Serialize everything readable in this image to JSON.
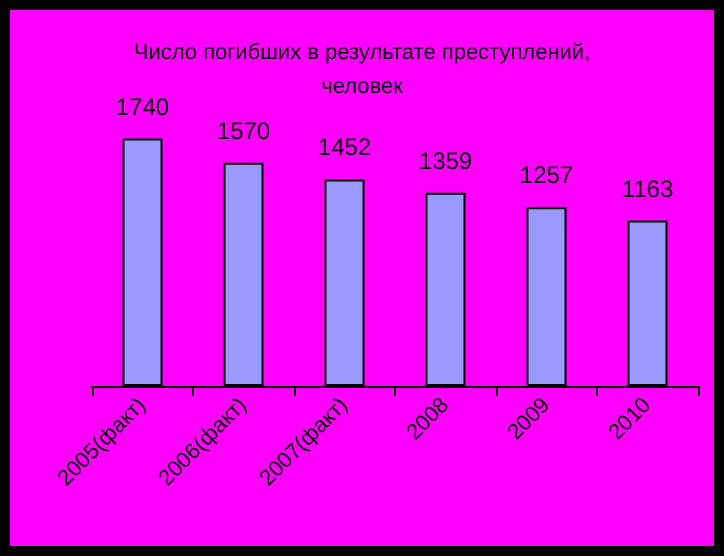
{
  "chart_data": {
    "type": "bar",
    "title": "Число погибших в результате преступлений,\nчеловек",
    "categories": [
      "2005(факт)",
      "2006(факт)",
      "2007(факт)",
      "2008",
      "2009",
      "2010"
    ],
    "values": [
      1740,
      1570,
      1452,
      1359,
      1257,
      1163
    ],
    "color": "#9999ff",
    "data_labels": true
  }
}
